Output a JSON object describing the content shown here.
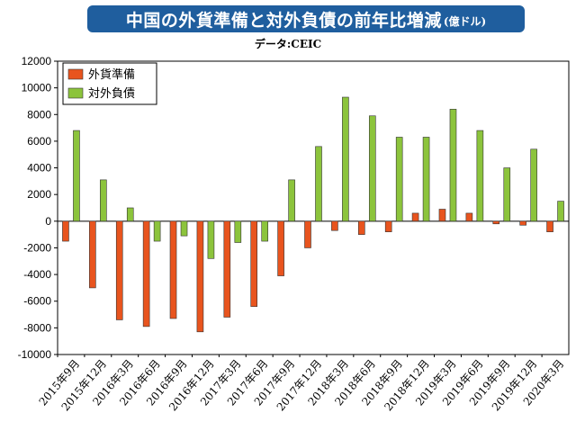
{
  "header": {
    "title": "中国の外貨準備と対外負債の前年比増減",
    "unit": "(億ドル)"
  },
  "source": "データ:CEIC",
  "chart_data": {
    "type": "bar",
    "title": "中国の外貨準備と対外負債の前年比増減(億ドル)",
    "xlabel": "",
    "ylabel": "",
    "ylim": [
      -10000,
      12000
    ],
    "yticks": [
      12000,
      10000,
      8000,
      6000,
      4000,
      2000,
      0,
      -2000,
      -4000,
      -6000,
      -8000,
      -10000
    ],
    "grid": false,
    "legend_position": "top-left",
    "categories": [
      "2015年9月",
      "2015年12月",
      "2016年3月",
      "2016年6月",
      "2016年9月",
      "2016年12月",
      "2017年3月",
      "2017年6月",
      "2017年9月",
      "2017年12月",
      "2018年3月",
      "2018年6月",
      "2018年9月",
      "2018年12月",
      "2019年3月",
      "2019年6月",
      "2019年9月",
      "2019年12月",
      "2020年3月"
    ],
    "series": [
      {
        "name": "外貨準備",
        "color": "#e8541e",
        "values": [
          -1500,
          -5000,
          -7400,
          -7900,
          -7300,
          -8300,
          -7200,
          -6400,
          -4100,
          -2000,
          -700,
          -1000,
          -800,
          600,
          900,
          600,
          -200,
          -300,
          -800
        ]
      },
      {
        "name": "対外負債",
        "color": "#8cc43c",
        "values": [
          6800,
          3100,
          1000,
          -1500,
          -1100,
          -2800,
          -1600,
          -1500,
          3100,
          5600,
          9300,
          7900,
          6300,
          6300,
          8400,
          6800,
          4000,
          5400,
          1500
        ]
      }
    ]
  }
}
